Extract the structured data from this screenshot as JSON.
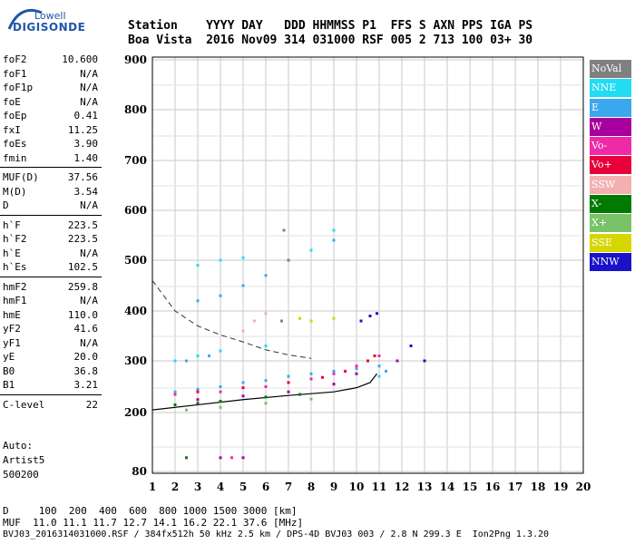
{
  "logo": {
    "line1": "Lowell",
    "line2": "DIGISONDE"
  },
  "header": {
    "row1": "Station    YYYY DAY   DDD HHMMSS P1  FFS S AXN PPS IGA PS",
    "row2": "Boa Vista  2016 Nov09 314 031000 RSF 005 2 713 100 03+ 30"
  },
  "params": {
    "group1": [
      {
        "label": "foF2",
        "value": "10.600"
      },
      {
        "label": "foF1",
        "value": "N/A"
      },
      {
        "label": "foF1p",
        "value": "N/A"
      },
      {
        "label": "foE",
        "value": "N/A"
      },
      {
        "label": "foEp",
        "value": "0.41"
      },
      {
        "label": "fxI",
        "value": "11.25"
      },
      {
        "label": "foEs",
        "value": "3.90"
      },
      {
        "label": "fmin",
        "value": "1.40"
      }
    ],
    "group2": [
      {
        "label": "MUF(D)",
        "value": "37.56"
      },
      {
        "label": "M(D)",
        "value": "3.54"
      },
      {
        "label": "D",
        "value": "N/A"
      }
    ],
    "group3": [
      {
        "label": "h`F",
        "value": "223.5"
      },
      {
        "label": "h`F2",
        "value": "223.5"
      },
      {
        "label": "h`E",
        "value": "N/A"
      },
      {
        "label": "h`Es",
        "value": "102.5"
      }
    ],
    "group4": [
      {
        "label": "hmF2",
        "value": "259.8"
      },
      {
        "label": "hmF1",
        "value": "N/A"
      },
      {
        "label": "hmE",
        "value": "110.0"
      },
      {
        "label": "yF2",
        "value": "41.6"
      },
      {
        "label": "yF1",
        "value": "N/A"
      },
      {
        "label": "yE",
        "value": "20.0"
      },
      {
        "label": "B0",
        "value": "36.8"
      },
      {
        "label": "B1",
        "value": "3.21"
      }
    ],
    "group5": [
      {
        "label": "C-level",
        "value": "22"
      }
    ]
  },
  "autoscaling": {
    "line1": "Auto:",
    "line2": "Artist5",
    "line3": "500200"
  },
  "legend": [
    {
      "label": "NoVal",
      "color": "#808080"
    },
    {
      "label": "NNE",
      "color": "#22dcf4"
    },
    {
      "label": "E",
      "color": "#3ba8ee"
    },
    {
      "label": "W",
      "color": "#a7009e"
    },
    {
      "label": "Vo-",
      "color": "#ee2aa6"
    },
    {
      "label": "Vo+",
      "color": "#e8003a"
    },
    {
      "label": "SSW",
      "color": "#f4b0b0"
    },
    {
      "label": "X-",
      "color": "#007a00"
    },
    {
      "label": "X+",
      "color": "#7ac26a"
    },
    {
      "label": "SSE",
      "color": "#d6d600"
    },
    {
      "label": "NNW",
      "color": "#1a12c8"
    }
  ],
  "footer": {
    "row1": "D     100  200  400  600  800 1000 1500 3000 [km]",
    "row2": "MUF  11.0 11.1 11.7 12.7 14.1 16.2 22.1 37.6 [MHz]",
    "row3": "BVJ03_2016314031000.RSF / 384fx512h 50 kHz 2.5 km / DPS-4D BVJ03 003 / 2.8 N 299.3 E  Ion2Png 1.3.20"
  },
  "chart_data": {
    "type": "scatter",
    "x_ticks": [
      "1",
      "2",
      "3",
      "4",
      "5",
      "6",
      "7",
      "8",
      "9",
      "10",
      "11",
      "12",
      "13",
      "14",
      "15",
      "16",
      "17",
      "18",
      "19",
      "20"
    ],
    "y_ticks": [
      "80",
      "200",
      "300",
      "400",
      "500",
      "600",
      "700",
      "800",
      "900"
    ],
    "xlim": [
      1,
      20
    ],
    "ylim": [
      80,
      900
    ],
    "y_scale": "nonlinear (virtual height, km)",
    "grid": true,
    "series": [
      {
        "name": "E",
        "points": [
          [
            2.0,
            240
          ],
          [
            3.0,
            245
          ],
          [
            4.0,
            250
          ],
          [
            5.0,
            258
          ],
          [
            6.0,
            262
          ],
          [
            7.0,
            270
          ],
          [
            8.0,
            275
          ],
          [
            9.0,
            280
          ],
          [
            10.0,
            285
          ],
          [
            11.0,
            290
          ],
          [
            11.3,
            280
          ],
          [
            3,
            420
          ],
          [
            4,
            430
          ],
          [
            5,
            450
          ],
          [
            6,
            470
          ],
          [
            7,
            500
          ],
          [
            8,
            520
          ],
          [
            9,
            540
          ],
          [
            2.5,
            300
          ],
          [
            3.5,
            310
          ]
        ]
      },
      {
        "name": "NNE",
        "points": [
          [
            2.0,
            300
          ],
          [
            3.0,
            310
          ],
          [
            4.0,
            320
          ],
          [
            6.0,
            330
          ],
          [
            8.0,
            520
          ],
          [
            9.0,
            560
          ],
          [
            3.0,
            490
          ],
          [
            4.0,
            500
          ],
          [
            5.0,
            505
          ],
          [
            11.0,
            270
          ]
        ]
      },
      {
        "name": "Vo-",
        "points": [
          [
            2.0,
            235
          ],
          [
            4.0,
            240
          ],
          [
            6.0,
            250
          ],
          [
            8.0,
            265
          ],
          [
            9.0,
            275
          ],
          [
            10.0,
            290
          ],
          [
            10.5,
            300
          ],
          [
            11.0,
            310
          ],
          [
            4.5,
            108
          ]
        ]
      },
      {
        "name": "Vo+",
        "points": [
          [
            3.0,
            240
          ],
          [
            5.0,
            248
          ],
          [
            7.0,
            258
          ],
          [
            8.5,
            268
          ],
          [
            9.5,
            280
          ],
          [
            10.5,
            300
          ],
          [
            10.8,
            310
          ]
        ]
      },
      {
        "name": "W",
        "points": [
          [
            3.0,
            225
          ],
          [
            5.0,
            232
          ],
          [
            7.0,
            240
          ],
          [
            9.0,
            255
          ],
          [
            10.0,
            275
          ],
          [
            4.0,
            108
          ],
          [
            5.0,
            108
          ],
          [
            11.8,
            300
          ],
          [
            13.0,
            300
          ]
        ]
      },
      {
        "name": "NNW",
        "points": [
          [
            10.2,
            380
          ],
          [
            10.6,
            390
          ],
          [
            10.9,
            395
          ],
          [
            12.4,
            330
          ],
          [
            13.0,
            300
          ]
        ]
      },
      {
        "name": "X-",
        "points": [
          [
            2.0,
            215
          ],
          [
            3.0,
            218
          ],
          [
            4.0,
            222
          ],
          [
            6.0,
            230
          ],
          [
            7.5,
            235
          ],
          [
            2.5,
            108
          ]
        ]
      },
      {
        "name": "X+",
        "points": [
          [
            2.5,
            205
          ],
          [
            4.0,
            210
          ],
          [
            6.0,
            218
          ],
          [
            8.0,
            226
          ]
        ]
      },
      {
        "name": "SSE",
        "points": [
          [
            8.0,
            380
          ],
          [
            9.0,
            385
          ],
          [
            7.5,
            385
          ]
        ]
      },
      {
        "name": "SSW",
        "points": [
          [
            5.0,
            360
          ],
          [
            5.5,
            380
          ],
          [
            6.0,
            395
          ]
        ]
      },
      {
        "name": "NoVal",
        "points": [
          [
            6.7,
            380
          ],
          [
            6.8,
            560
          ],
          [
            7.0,
            500
          ]
        ]
      }
    ]
  }
}
